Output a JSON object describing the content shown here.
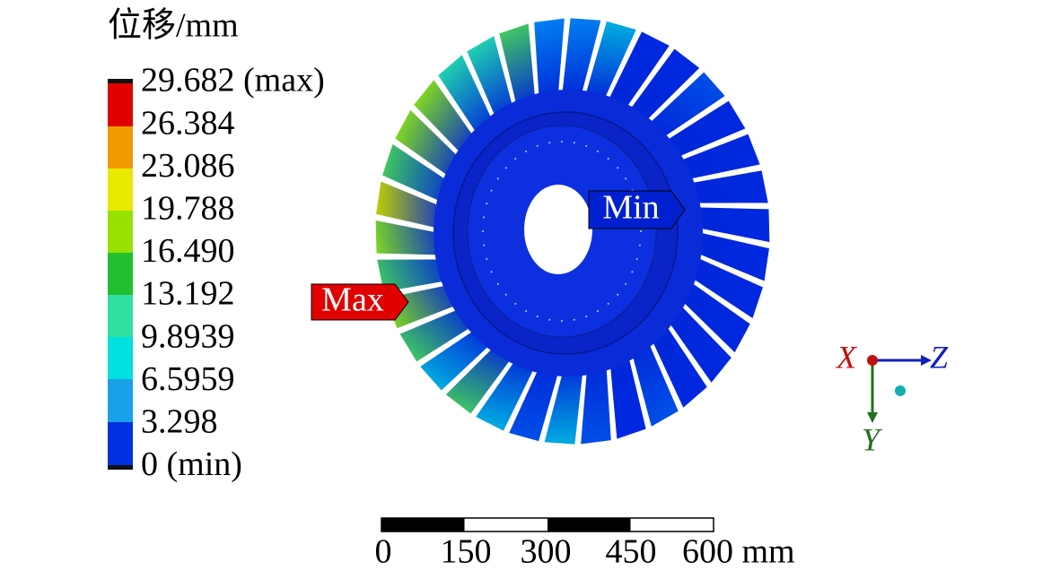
{
  "legend": {
    "title": "位移/mm",
    "labels": [
      "29.682 (max)",
      "26.384",
      "23.086",
      "19.788",
      "16.490",
      "13.192",
      "9.8939",
      "6.5959",
      "3.298",
      "0 (min)"
    ]
  },
  "probes": {
    "max": "Max",
    "min": "Min"
  },
  "triad": {
    "x": "X",
    "y": "Y",
    "z": "Z"
  },
  "scale_bar": {
    "labels": [
      "0",
      "150",
      "300",
      "450",
      "600 mm"
    ]
  }
}
